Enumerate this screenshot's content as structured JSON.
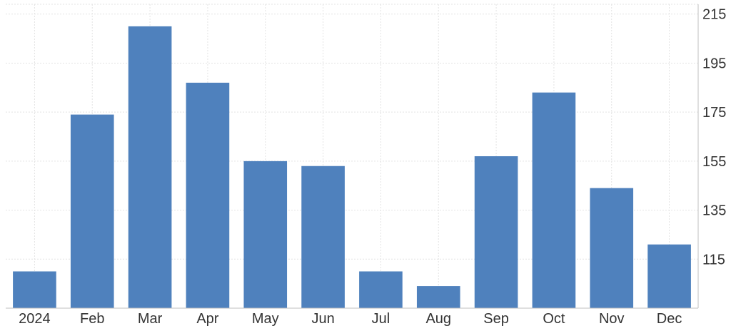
{
  "chart_data": {
    "type": "bar",
    "categories": [
      "2024",
      "Feb",
      "Mar",
      "Apr",
      "May",
      "Jun",
      "Jul",
      "Aug",
      "Sep",
      "Oct",
      "Nov",
      "Dec"
    ],
    "values": [
      110,
      174,
      210,
      187,
      155,
      153,
      110,
      104,
      157,
      183,
      144,
      121
    ],
    "yticks": [
      "115",
      "135",
      "155",
      "175",
      "195",
      "215"
    ],
    "ylim": [
      95,
      219
    ],
    "y_axis_side": "right",
    "grid": true,
    "legend": "none",
    "bar_color": "#4f81bd"
  }
}
